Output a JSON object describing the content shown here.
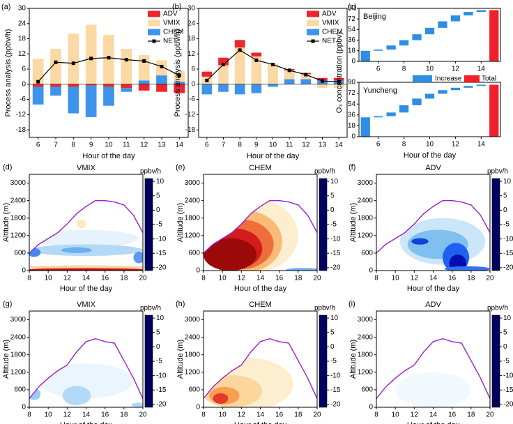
{
  "chart_data": [
    {
      "type": "bar",
      "label": "(a)",
      "xlabel": "Hour of the day",
      "ylabel": "Process analysis (ppbv/h)",
      "x": [
        6,
        7,
        8,
        9,
        10,
        11,
        12,
        13,
        14
      ],
      "xlim": [
        5.5,
        14.5
      ],
      "xticks": [
        6,
        7,
        8,
        9,
        10,
        11,
        12,
        13,
        14
      ],
      "ylim": [
        -21,
        30
      ],
      "yticks": [
        -18,
        -12,
        -6,
        0,
        6,
        12,
        18,
        24,
        30
      ],
      "legend": "upper right",
      "series": [
        {
          "name": "ADV",
          "type": "bar",
          "color": "#f0242c",
          "values": [
            -1,
            -1,
            -1,
            -0.5,
            -1,
            -1.5,
            -2.5,
            -3,
            -3.5
          ]
        },
        {
          "name": "VMIX",
          "type": "bar",
          "color": "#fcd9a4",
          "values": [
            10,
            14,
            20,
            23.5,
            19.5,
            14,
            10,
            6,
            4
          ]
        },
        {
          "name": "CHEM",
          "type": "bar",
          "color": "#3d94ea",
          "values": [
            -7,
            -3.5,
            -10.5,
            -12.5,
            -7.5,
            -1.5,
            1.5,
            3.5,
            1
          ]
        },
        {
          "name": "NET",
          "type": "line",
          "color": "#000000",
          "values": [
            1,
            8.7,
            8.3,
            10.2,
            10.5,
            9.7,
            9.2,
            7,
            3.5
          ]
        }
      ]
    },
    {
      "type": "bar",
      "label": "(b)",
      "xlabel": "Hour of the day",
      "ylabel": "Process analysis (ppbv/h)",
      "x": [
        6,
        7,
        8,
        9,
        10,
        11,
        12,
        13,
        14
      ],
      "xlim": [
        5.5,
        14.5
      ],
      "xticks": [
        6,
        7,
        8,
        9,
        10,
        11,
        12,
        13,
        14
      ],
      "ylim": [
        -21,
        30
      ],
      "yticks": [
        -18,
        -12,
        -6,
        0,
        6,
        12,
        18,
        24,
        30
      ],
      "legend": "upper right",
      "series": [
        {
          "name": "ADV",
          "type": "bar",
          "color": "#f0242c",
          "values": [
            2,
            3,
            3,
            1.5,
            0,
            0.5,
            0.5,
            1,
            1
          ]
        },
        {
          "name": "VMIX",
          "type": "bar",
          "color": "#fcd9a4",
          "values": [
            3,
            7.5,
            14.5,
            11,
            8,
            3.5,
            2,
            -1.5,
            -1.5
          ]
        },
        {
          "name": "CHEM",
          "type": "bar",
          "color": "#3d94ea",
          "values": [
            -4,
            -3,
            -4,
            -3.5,
            -1,
            2,
            2,
            1.5,
            1.5
          ]
        },
        {
          "name": "NET",
          "type": "line",
          "color": "#000000",
          "values": [
            1.5,
            7.8,
            13.5,
            9.5,
            7.8,
            5.5,
            3.8,
            1.3,
            1
          ]
        }
      ]
    },
    {
      "type": "waterfall",
      "label": "(c)",
      "xlabel": "Hour of the day",
      "ylabel": "O₃ concentration (ppbv)",
      "x": [
        5,
        6,
        7,
        8,
        9,
        10,
        11,
        12,
        13,
        14,
        15
      ],
      "xlim": [
        4.5,
        15.5
      ],
      "xticks": [
        6,
        8,
        10,
        12,
        14
      ],
      "ylim": [
        0,
        90
      ],
      "yticks": [
        0,
        18,
        36,
        54,
        72,
        90
      ],
      "series": [
        {
          "name": "Increase",
          "color": "#2f8de4"
        },
        {
          "name": "Total",
          "color": "#f0202a"
        }
      ],
      "panels": [
        {
          "title": "Beijing",
          "values": [
            [
              18,
              2,
              7,
              9,
              10,
              11,
              11,
              10,
              6,
              3,
              null
            ],
            [
              null,
              null,
              null,
              null,
              null,
              null,
              null,
              null,
              null,
              null,
              87
            ]
          ]
        },
        {
          "title": "Yuncheng",
          "values": [
            [
              32,
              2,
              6,
              12,
              11,
              8,
              6,
              4,
              3,
              2,
              null
            ],
            [
              null,
              null,
              null,
              null,
              null,
              null,
              null,
              null,
              null,
              null,
              86
            ]
          ]
        }
      ]
    },
    {
      "type": "contour",
      "label": "(d)",
      "title": "VMIX",
      "xlabel": "Hour of the day",
      "ylabel": "Altitude (m)",
      "xlim": [
        8,
        20
      ],
      "xticks": [
        8,
        10,
        12,
        14,
        16,
        18,
        20
      ],
      "ylim": [
        0,
        3300
      ],
      "yticks": [
        0,
        600,
        1200,
        1800,
        2400,
        3000
      ],
      "pbl": {
        "color": "#9b1fd0",
        "x": [
          8,
          9,
          10,
          11,
          12,
          13,
          14,
          15,
          16,
          17,
          18,
          19,
          20
        ],
        "values": [
          600,
          900,
          1100,
          1300,
          1600,
          1950,
          2200,
          2400,
          2400,
          2350,
          2250,
          1900,
          1300
        ]
      },
      "blobs": {
        "x": [
          14,
          14,
          13,
          8.5,
          19.6,
          13.5,
          14,
          14
        ],
        "y": [
          1100,
          700,
          700,
          620,
          450,
          1600,
          110,
          30
        ],
        "rx": [
          5.5,
          6,
          1.6,
          0.7,
          0.6,
          0.5,
          6.5,
          6.5
        ],
        "ry": [
          300,
          200,
          100,
          150,
          200,
          150,
          70,
          50
        ],
        "values": [
          -1,
          -3,
          -6,
          -8,
          -7,
          2,
          3,
          9
        ]
      },
      "colorbar": {
        "label": "ppbv/h",
        "lim": [
          -21,
          11
        ],
        "ticks": [
          10,
          5,
          0,
          -5,
          -10,
          -15,
          -20
        ],
        "color_values": [
          -21,
          -15,
          -10,
          -5,
          0,
          2.5,
          5,
          7.5,
          11
        ],
        "colors": [
          "#000060",
          "#0010c0",
          "#2060f0",
          "#80c0f0",
          "#ffffff",
          "#fde3b0",
          "#f8a050",
          "#e02020",
          "#800000"
        ]
      }
    },
    {
      "type": "contour",
      "label": "(e)",
      "title": "CHEM",
      "xlabel": "Hour of the day",
      "ylabel": "Altitude (m)",
      "xlim": [
        8,
        20
      ],
      "xticks": [
        8,
        10,
        12,
        14,
        16,
        18,
        20
      ],
      "ylim": [
        0,
        3300
      ],
      "yticks": [
        0,
        600,
        1200,
        1800,
        2400,
        3000
      ],
      "pbl": {
        "color": "#9b1fd0",
        "x": [
          8,
          9,
          10,
          11,
          12,
          13,
          14,
          15,
          16,
          17,
          18,
          19,
          20
        ],
        "values": [
          600,
          900,
          1100,
          1300,
          1600,
          1950,
          2200,
          2400,
          2400,
          2350,
          2250,
          1900,
          1300
        ]
      },
      "blobs": {
        "x": [
          13,
          12.5,
          12,
          11.2,
          10.8,
          18.5
        ],
        "y": [
          1200,
          1000,
          900,
          750,
          550,
          30
        ],
        "rx": [
          5,
          3.8,
          3.4,
          3,
          2.8,
          1.8
        ],
        "ry": [
          1300,
          1050,
          850,
          700,
          560,
          60
        ],
        "values": [
          1.5,
          4,
          6,
          8,
          10,
          -6
        ]
      },
      "colorbar": {
        "label": "ppbv/h",
        "lim": [
          -21,
          11
        ],
        "ticks": [
          10,
          5,
          0,
          -5,
          -10,
          -15,
          -20
        ],
        "color_values": [
          -21,
          -15,
          -10,
          -5,
          0,
          2.5,
          5,
          7.5,
          11
        ],
        "colors": [
          "#000060",
          "#0010c0",
          "#2060f0",
          "#80c0f0",
          "#ffffff",
          "#fde3b0",
          "#f8a050",
          "#e02020",
          "#800000"
        ]
      }
    },
    {
      "type": "contour",
      "label": "(f)",
      "title": "ADV",
      "xlabel": "Hour of the day",
      "ylabel": "Altitude (m)",
      "xlim": [
        8,
        20
      ],
      "xticks": [
        8,
        10,
        12,
        14,
        16,
        18,
        20
      ],
      "ylim": [
        0,
        3300
      ],
      "yticks": [
        0,
        600,
        1200,
        1800,
        2400,
        3000
      ],
      "pbl": {
        "color": "#9b1fd0",
        "x": [
          8,
          9,
          10,
          11,
          12,
          13,
          14,
          15,
          16,
          17,
          18,
          19,
          20
        ],
        "values": [
          600,
          900,
          1100,
          1300,
          1600,
          1950,
          2200,
          2400,
          2400,
          2350,
          2250,
          1900,
          1300
        ]
      },
      "blobs": {
        "x": [
          15,
          14.5,
          12.6,
          16.4,
          16.6,
          17.6
        ],
        "y": [
          1000,
          900,
          1000,
          450,
          250,
          60
        ],
        "rx": [
          4.5,
          3.2,
          0.9,
          1.4,
          0.9,
          2.4
        ],
        "ry": [
          800,
          500,
          110,
          500,
          300,
          90
        ],
        "values": [
          -2,
          -5,
          -12,
          -10,
          -16,
          -9
        ]
      },
      "colorbar": {
        "label": "ppbv/h",
        "lim": [
          -21,
          11
        ],
        "ticks": [
          10,
          5,
          0,
          -5,
          -10,
          -15,
          -20
        ],
        "color_values": [
          -21,
          -15,
          -10,
          -5,
          0,
          2.5,
          5,
          7.5,
          11
        ],
        "colors": [
          "#000060",
          "#0010c0",
          "#2060f0",
          "#80c0f0",
          "#ffffff",
          "#fde3b0",
          "#f8a050",
          "#e02020",
          "#800000"
        ]
      }
    },
    {
      "type": "contour",
      "label": "(g)",
      "title": "VMIX",
      "xlabel": "Hour of the day",
      "ylabel": "Altitude (m)",
      "xlim": [
        8,
        20
      ],
      "xticks": [
        8,
        10,
        12,
        14,
        16,
        18,
        20
      ],
      "ylim": [
        0,
        3300
      ],
      "yticks": [
        0,
        600,
        1200,
        1800,
        2400,
        3000
      ],
      "pbl": {
        "color": "#9b1fd0",
        "x": [
          8,
          9,
          10,
          11,
          12,
          13,
          14,
          15,
          16,
          17,
          18,
          19,
          20
        ],
        "values": [
          300,
          700,
          1000,
          1250,
          1450,
          1900,
          2250,
          2350,
          2250,
          2200,
          1600,
          1000,
          300
        ]
      },
      "blobs": {
        "x": [
          14,
          13,
          8.5,
          19.5
        ],
        "y": [
          900,
          400,
          450,
          80
        ],
        "rx": [
          5,
          1.5,
          0.7,
          0.7
        ],
        "ry": [
          600,
          330,
          200,
          80
        ],
        "values": [
          -0.8,
          -3,
          -4,
          -3
        ]
      },
      "colorbar": {
        "label": "ppbv/h",
        "lim": [
          -21,
          11
        ],
        "ticks": [
          10,
          5,
          0,
          -5,
          -10,
          -15,
          -20
        ],
        "color_values": [
          -21,
          -15,
          -10,
          -5,
          0,
          2.5,
          5,
          7.5,
          11
        ],
        "colors": [
          "#000060",
          "#0010c0",
          "#2060f0",
          "#80c0f0",
          "#ffffff",
          "#fde3b0",
          "#f8a050",
          "#e02020",
          "#800000"
        ]
      }
    },
    {
      "type": "contour",
      "label": "(h)",
      "title": "CHEM",
      "xlabel": "Hour of the day",
      "ylabel": "Altitude (m)",
      "xlim": [
        8,
        20
      ],
      "xticks": [
        8,
        10,
        12,
        14,
        16,
        18,
        20
      ],
      "ylim": [
        0,
        3300
      ],
      "yticks": [
        0,
        600,
        1200,
        1800,
        2400,
        3000
      ],
      "pbl": {
        "color": "#9b1fd0",
        "x": [
          8,
          9,
          10,
          11,
          12,
          13,
          14,
          15,
          16,
          17,
          18,
          19,
          20
        ],
        "values": [
          300,
          700,
          1000,
          1250,
          1450,
          1900,
          2250,
          2350,
          2250,
          2200,
          1600,
          1000,
          300
        ]
      },
      "blobs": {
        "x": [
          12.5,
          11,
          10.2,
          9.8
        ],
        "y": [
          800,
          550,
          400,
          300
        ],
        "rx": [
          5,
          3.2,
          1.6,
          0.8
        ],
        "ry": [
          900,
          550,
          300,
          180
        ],
        "values": [
          1.5,
          3,
          5,
          7
        ]
      },
      "colorbar": {
        "label": "ppbv/h",
        "lim": [
          -21,
          11
        ],
        "ticks": [
          10,
          5,
          0,
          -5,
          -10,
          -15,
          -20
        ],
        "color_values": [
          -21,
          -15,
          -10,
          -5,
          0,
          2.5,
          5,
          7.5,
          11
        ],
        "colors": [
          "#000060",
          "#0010c0",
          "#2060f0",
          "#80c0f0",
          "#ffffff",
          "#fde3b0",
          "#f8a050",
          "#e02020",
          "#800000"
        ]
      }
    },
    {
      "type": "contour",
      "label": "(i)",
      "title": "ADV",
      "xlabel": "Hour of the day",
      "ylabel": "Altitude (m)",
      "xlim": [
        8,
        20
      ],
      "xticks": [
        8,
        10,
        12,
        14,
        16,
        18,
        20
      ],
      "ylim": [
        0,
        3300
      ],
      "yticks": [
        0,
        600,
        1200,
        1800,
        2400,
        3000
      ],
      "pbl": {
        "color": "#9b1fd0",
        "x": [
          8,
          9,
          10,
          11,
          12,
          13,
          14,
          15,
          16,
          17,
          18,
          19,
          20
        ],
        "values": [
          300,
          700,
          1000,
          1250,
          1450,
          1900,
          2250,
          2350,
          2250,
          2200,
          1600,
          1000,
          300
        ]
      },
      "blobs": {
        "x": [
          14
        ],
        "y": [
          600
        ],
        "rx": [
          4
        ],
        "ry": [
          600
        ],
        "values": [
          -0.5
        ]
      },
      "colorbar": {
        "label": "ppbv/h",
        "lim": [
          -21,
          11
        ],
        "ticks": [
          10,
          5,
          0,
          -5,
          -10,
          -15,
          -20
        ],
        "color_values": [
          -21,
          -15,
          -10,
          -5,
          0,
          2.5,
          5,
          7.5,
          11
        ],
        "colors": [
          "#000060",
          "#0010c0",
          "#2060f0",
          "#80c0f0",
          "#ffffff",
          "#fde3b0",
          "#f8a050",
          "#e02020",
          "#800000"
        ]
      }
    }
  ]
}
